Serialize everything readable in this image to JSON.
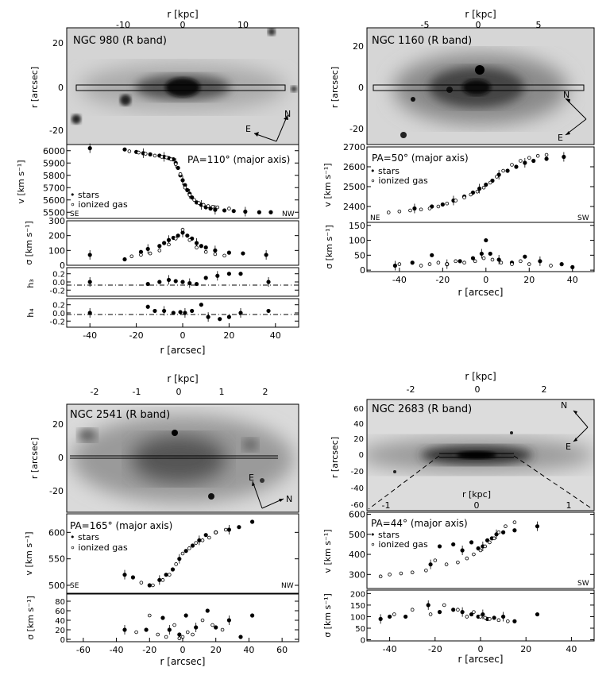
{
  "panels": [
    {
      "id": "ngc980",
      "image_label": "NGC 980 (R band)",
      "top_axis_label": "r [kpc]",
      "top_ticks": [
        "-10",
        "0",
        "10"
      ],
      "image_yticks": [
        "20",
        "0",
        "-20"
      ],
      "image_ylabel": "r [arcsec]",
      "compass": {
        "N": "N",
        "E": "E"
      },
      "pa_label": "PA=110° (major axis)",
      "legend": {
        "stars": "stars",
        "gas": "ionized gas"
      },
      "v_ticks": [
        "6000",
        "5900",
        "5800",
        "5700",
        "5600",
        "5500"
      ],
      "v_label": "v [km s⁻¹]",
      "side_left": "SE",
      "side_right": "NW",
      "s_ticks": [
        "300",
        "200",
        "100",
        "0"
      ],
      "s_label": "σ [km s⁻¹]",
      "h3_label": "h₃",
      "h3_ticks": [
        "0.2",
        "0.0",
        "-0.2"
      ],
      "h4_label": "h₄",
      "h4_ticks": [
        "0.2",
        "0.0",
        "-0.2"
      ],
      "bottom_ticks": [
        "-40",
        "-20",
        "0",
        "20",
        "40"
      ],
      "bottom_label": "r [arcsec]"
    },
    {
      "id": "ngc1160",
      "image_label": "NGC 1160 (R band)",
      "top_axis_label": "r [kpc]",
      "top_ticks": [
        "-5",
        "0",
        "5"
      ],
      "image_yticks": [
        "20",
        "0",
        "-20"
      ],
      "image_ylabel": "r [arcsec]",
      "compass": {
        "N": "N",
        "E": "E"
      },
      "pa_label": "PA=50° (major axis)",
      "legend": {
        "stars": "stars",
        "gas": "ionized gas"
      },
      "v_ticks": [
        "2700",
        "2600",
        "2500",
        "2400"
      ],
      "v_label": "v [km s⁻¹]",
      "side_left": "NE",
      "side_right": "SW",
      "s_ticks": [
        "150",
        "100",
        "50",
        "0"
      ],
      "s_label": "σ [km s⁻¹]",
      "bottom_ticks": [
        "-40",
        "-20",
        "0",
        "20",
        "40"
      ],
      "bottom_label": "r [arcsec]"
    },
    {
      "id": "ngc2541",
      "image_label": "NGC 2541 (R band)",
      "top_axis_label": "r [kpc]",
      "top_ticks": [
        "-2",
        "-1",
        "0",
        "1",
        "2"
      ],
      "image_yticks": [
        "20",
        "0",
        "-20"
      ],
      "image_ylabel": "r [arcsec]",
      "compass": {
        "N": "N",
        "E": "E"
      },
      "pa_label": "PA=165° (major axis)",
      "legend": {
        "stars": "stars",
        "gas": "ionized gas"
      },
      "v_ticks": [
        "600",
        "550",
        "500"
      ],
      "v_label": "v [km s⁻¹]",
      "side_left": "SE",
      "side_right": "NW",
      "s_ticks": [
        "80",
        "60",
        "40",
        "20",
        "0"
      ],
      "s_label": "σ [km s⁻¹]",
      "bottom_ticks": [
        "-60",
        "-40",
        "-20",
        "0",
        "20",
        "40",
        "60"
      ],
      "bottom_label": "r [arcsec]"
    },
    {
      "id": "ngc2683",
      "image_label": "NGC 2683 (R band)",
      "top_axis_label": "r [kpc]",
      "top_ticks": [
        "-2",
        "0",
        "2"
      ],
      "image_yticks": [
        "60",
        "40",
        "20",
        "0",
        "-20",
        "-40",
        "-60"
      ],
      "image_ylabel": "r [arcsec]",
      "inner_axis_label": "r [kpc]",
      "inner_ticks": [
        "-1",
        "0",
        "1"
      ],
      "compass": {
        "N": "N",
        "E": "E"
      },
      "pa_label": "PA=44° (major axis)",
      "legend": {
        "stars": "stars",
        "gas": "ionized gas"
      },
      "v_ticks": [
        "600",
        "500",
        "400",
        "300"
      ],
      "v_label": "v [km s⁻¹]",
      "side_right": "SW",
      "s_ticks": [
        "200",
        "150",
        "100",
        "50",
        "0"
      ],
      "s_label": "σ [km s⁻¹]",
      "bottom_ticks": [
        "-40",
        "-20",
        "0",
        "20",
        "40"
      ],
      "bottom_label": "r [arcsec]"
    }
  ],
  "chart_data": [
    {
      "type": "scatter",
      "galaxy": "NGC 980",
      "panel": "velocity",
      "xlim": [
        -50,
        50
      ],
      "ylim": [
        5450,
        6050
      ],
      "series": [
        {
          "name": "stars",
          "x": [
            -40,
            -25,
            -20,
            -17,
            -14,
            -10,
            -8,
            -6,
            -4,
            -3,
            -2,
            -1,
            0,
            1,
            2,
            3,
            4,
            6,
            8,
            10,
            12,
            14,
            18,
            22,
            27,
            33,
            38
          ],
          "y": [
            6020,
            6010,
            5990,
            5980,
            5970,
            5960,
            5950,
            5940,
            5930,
            5900,
            5860,
            5800,
            5760,
            5720,
            5680,
            5650,
            5620,
            5580,
            5560,
            5540,
            5530,
            5520,
            5515,
            5510,
            5505,
            5500,
            5500
          ]
        },
        {
          "name": "ionized gas",
          "x": [
            -23,
            -19,
            -16,
            -12,
            -9,
            -7,
            -5,
            -3,
            -1,
            1,
            3,
            5,
            7,
            9,
            11,
            13,
            15,
            20
          ],
          "y": [
            5995,
            5985,
            5975,
            5960,
            5950,
            5945,
            5930,
            5890,
            5810,
            5700,
            5640,
            5600,
            5575,
            5560,
            5550,
            5545,
            5540,
            5530
          ]
        }
      ]
    },
    {
      "type": "scatter",
      "galaxy": "NGC 980",
      "panel": "dispersion",
      "xlim": [
        -50,
        50
      ],
      "ylim": [
        0,
        300
      ],
      "series": [
        {
          "name": "stars",
          "x": [
            -40,
            -25,
            -18,
            -15,
            -10,
            -8,
            -6,
            -4,
            -2,
            0,
            2,
            4,
            6,
            8,
            10,
            14,
            20,
            26,
            36
          ],
          "y": [
            70,
            40,
            90,
            110,
            130,
            150,
            170,
            185,
            200,
            220,
            200,
            180,
            150,
            130,
            120,
            100,
            85,
            80,
            70
          ]
        },
        {
          "name": "ionized gas",
          "x": [
            -22,
            -18,
            -14,
            -10,
            -6,
            -3,
            0,
            3,
            6,
            10,
            14,
            18
          ],
          "y": [
            60,
            70,
            80,
            100,
            140,
            180,
            240,
            170,
            120,
            90,
            75,
            65
          ]
        }
      ]
    },
    {
      "type": "scatter",
      "galaxy": "NGC 980",
      "panel": "h3",
      "xlim": [
        -50,
        50
      ],
      "ylim": [
        -0.35,
        0.35
      ],
      "series": [
        {
          "name": "stars",
          "x": [
            -40,
            -15,
            -10,
            -6,
            -3,
            0,
            3,
            6,
            10,
            15,
            20,
            25,
            37
          ],
          "y": [
            0.0,
            -0.05,
            0.0,
            0.05,
            0.02,
            0.0,
            -0.03,
            -0.05,
            0.1,
            0.15,
            0.2,
            0.2,
            0.0
          ]
        }
      ]
    },
    {
      "type": "scatter",
      "galaxy": "NGC 980",
      "panel": "h4",
      "xlim": [
        -50,
        50
      ],
      "ylim": [
        -0.35,
        0.35
      ],
      "series": [
        {
          "name": "stars",
          "x": [
            -40,
            -15,
            -12,
            -8,
            -4,
            -1,
            1,
            4,
            8,
            11,
            16,
            20,
            25,
            37
          ],
          "y": [
            0.0,
            0.15,
            0.05,
            0.05,
            0.0,
            0.02,
            0.0,
            0.05,
            0.2,
            -0.1,
            -0.15,
            -0.1,
            0.0,
            0.05
          ]
        }
      ]
    },
    {
      "type": "scatter",
      "galaxy": "NGC 1160",
      "panel": "velocity",
      "xlim": [
        -55,
        50
      ],
      "ylim": [
        2320,
        2700
      ],
      "series": [
        {
          "name": "stars",
          "x": [
            -33,
            -25,
            -20,
            -15,
            -10,
            -6,
            -3,
            0,
            3,
            6,
            10,
            14,
            18,
            22,
            28,
            36
          ],
          "y": [
            2390,
            2400,
            2410,
            2430,
            2450,
            2470,
            2490,
            2510,
            2530,
            2560,
            2580,
            2600,
            2620,
            2630,
            2640,
            2650
          ]
        },
        {
          "name": "ionized gas",
          "x": [
            -45,
            -40,
            -35,
            -30,
            -26,
            -22,
            -18,
            -14,
            -10,
            -7,
            -4,
            -1,
            2,
            5,
            8,
            12,
            16,
            20,
            24,
            28
          ],
          "y": [
            2370,
            2375,
            2380,
            2385,
            2390,
            2400,
            2415,
            2430,
            2445,
            2460,
            2475,
            2495,
            2520,
            2550,
            2580,
            2610,
            2630,
            2645,
            2655,
            2660
          ]
        }
      ]
    },
    {
      "type": "scatter",
      "galaxy": "NGC 1160",
      "panel": "dispersion",
      "xlim": [
        -55,
        50
      ],
      "ylim": [
        -5,
        160
      ],
      "series": [
        {
          "name": "stars",
          "x": [
            -42,
            -34,
            -25,
            -18,
            -12,
            -6,
            -2,
            0,
            2,
            6,
            12,
            18,
            25,
            35,
            40
          ],
          "y": [
            15,
            25,
            50,
            20,
            30,
            40,
            55,
            100,
            55,
            35,
            25,
            45,
            30,
            20,
            10
          ]
        },
        {
          "name": "ionized gas",
          "x": [
            -40,
            -30,
            -26,
            -22,
            -18,
            -14,
            -10,
            -5,
            -1,
            3,
            7,
            12,
            16,
            20,
            30
          ],
          "y": [
            20,
            15,
            20,
            25,
            20,
            30,
            25,
            30,
            40,
            35,
            25,
            20,
            30,
            20,
            15
          ]
        }
      ]
    },
    {
      "type": "scatter",
      "galaxy": "NGC 2541",
      "panel": "velocity",
      "xlim": [
        -70,
        70
      ],
      "ylim": [
        485,
        635
      ],
      "series": [
        {
          "name": "stars",
          "x": [
            -35,
            -30,
            -20,
            -14,
            -10,
            -6,
            -2,
            2,
            6,
            10,
            14,
            20,
            28,
            34,
            42
          ],
          "y": [
            520,
            515,
            500,
            510,
            520,
            530,
            550,
            565,
            575,
            585,
            595,
            600,
            605,
            610,
            620
          ]
        },
        {
          "name": "ionized gas",
          "x": [
            -25,
            -18,
            -12,
            -8,
            -4,
            0,
            4,
            8,
            12,
            16,
            20,
            26
          ],
          "y": [
            505,
            500,
            510,
            520,
            540,
            560,
            570,
            580,
            585,
            590,
            600,
            605
          ]
        }
      ]
    },
    {
      "type": "scatter",
      "galaxy": "NGC 2541",
      "panel": "dispersion",
      "xlim": [
        -70,
        70
      ],
      "ylim": [
        -5,
        95
      ],
      "series": [
        {
          "name": "stars",
          "x": [
            -35,
            -22,
            -12,
            -8,
            -2,
            2,
            8,
            15,
            20,
            28,
            35,
            42
          ],
          "y": [
            20,
            20,
            45,
            20,
            10,
            50,
            25,
            60,
            25,
            40,
            5,
            50
          ]
        },
        {
          "name": "ionized gas",
          "x": [
            -28,
            -20,
            -15,
            -10,
            -5,
            -2,
            0,
            3,
            6,
            12,
            18,
            24
          ],
          "y": [
            15,
            50,
            10,
            5,
            30,
            2,
            5,
            15,
            10,
            40,
            30,
            20
          ]
        }
      ]
    },
    {
      "type": "scatter",
      "galaxy": "NGC 2683",
      "panel": "velocity",
      "xlim": [
        -50,
        50
      ],
      "ylim": [
        230,
        610
      ],
      "series": [
        {
          "name": "stars",
          "x": [
            -22,
            -18,
            -12,
            -8,
            -4,
            -1,
            1,
            3,
            5,
            7,
            10,
            15,
            25
          ],
          "y": [
            350,
            440,
            450,
            420,
            460,
            430,
            440,
            470,
            480,
            500,
            510,
            520,
            540
          ]
        },
        {
          "name": "ionized gas",
          "x": [
            -44,
            -40,
            -35,
            -30,
            -24,
            -20,
            -15,
            -10,
            -6,
            -3,
            0,
            2,
            4,
            6,
            8,
            11,
            15
          ],
          "y": [
            290,
            300,
            305,
            310,
            320,
            370,
            350,
            360,
            380,
            400,
            420,
            440,
            460,
            480,
            510,
            540,
            560
          ]
        }
      ]
    },
    {
      "type": "scatter",
      "galaxy": "NGC 2683",
      "panel": "dispersion",
      "xlim": [
        -50,
        50
      ],
      "ylim": [
        -5,
        215
      ],
      "series": [
        {
          "name": "stars",
          "x": [
            -44,
            -40,
            -33,
            -23,
            -18,
            -12,
            -8,
            -4,
            -1,
            1,
            3,
            6,
            10,
            15,
            25
          ],
          "y": [
            90,
            100,
            100,
            150,
            120,
            130,
            120,
            110,
            100,
            110,
            90,
            95,
            100,
            80,
            110
          ]
        },
        {
          "name": "ionized gas",
          "x": [
            -38,
            -30,
            -22,
            -16,
            -10,
            -6,
            -3,
            0,
            2,
            4,
            8,
            12
          ],
          "y": [
            110,
            130,
            110,
            150,
            130,
            100,
            120,
            100,
            95,
            90,
            85,
            80
          ]
        }
      ]
    }
  ]
}
